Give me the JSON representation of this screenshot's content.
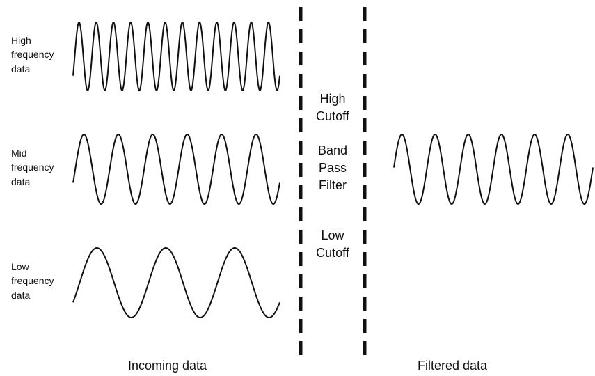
{
  "signals": [
    {
      "label": "High\nfrequency\ndata",
      "cycles": 12
    },
    {
      "label": "Mid\nfrequency\ndata",
      "cycles": 6
    },
    {
      "label": "Low\nfrequency\ndata",
      "cycles": 3
    }
  ],
  "filter": {
    "high_cutoff": "High\nCutoff",
    "name": "Band\nPass\nFilter",
    "low_cutoff": "Low\nCutoff"
  },
  "output": {
    "cycles": 6
  },
  "captions": {
    "incoming": "Incoming data",
    "filtered": "Filtered data"
  },
  "colors": {
    "wave": "#111111",
    "divider": "#111111"
  }
}
